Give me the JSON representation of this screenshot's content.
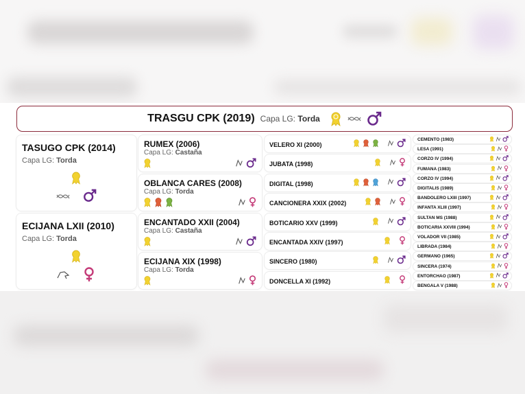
{
  "main": {
    "name": "TRASGU CPK (2019)",
    "capa_label": "Capa LG:",
    "capa_value": "Torda"
  },
  "parents": [
    {
      "name": "TASUGO CPK (2014)",
      "capa_label": "Capa LG:",
      "capa_value": "Torda",
      "sex": "♂"
    },
    {
      "name": "ECIJANA LXII (2010)",
      "capa_label": "Capa LG:",
      "capa_value": "Torda",
      "sex": "♀"
    }
  ],
  "grandparents": [
    {
      "name": "RUMEX (2006)",
      "capa_label": "Capa LG:",
      "capa_value": "Castaña",
      "sex": "♂"
    },
    {
      "name": "OBLANCA CARES (2008)",
      "capa_label": "Capa LG:",
      "capa_value": "Torda",
      "sex": "♀"
    },
    {
      "name": "ENCANTADO XXII (2004)",
      "capa_label": "Capa LG:",
      "capa_value": "Castaña",
      "sex": "♂"
    },
    {
      "name": "ECIJANA XIX (1998)",
      "capa_label": "Capa LG:",
      "capa_value": "Torda",
      "sex": "♀"
    }
  ],
  "great_grandparents": [
    {
      "name": "VELERO XI (2000)",
      "sex": "♂"
    },
    {
      "name": "JUBATA (1998)",
      "sex": "♀"
    },
    {
      "name": "DIGITAL (1998)",
      "sex": "♂"
    },
    {
      "name": "CANCIONERA XXIX (2002)",
      "sex": "♀"
    },
    {
      "name": "BOTICARIO XXV (1999)",
      "sex": "♂"
    },
    {
      "name": "ENCANTADA XXIV (1997)",
      "sex": "♀"
    },
    {
      "name": "SINCERO (1980)",
      "sex": "♂"
    },
    {
      "name": "DONCELLA XI (1992)",
      "sex": "♀"
    }
  ],
  "great_great_grandparents": [
    {
      "name": "CEMENTO (1983)",
      "sex": "♂"
    },
    {
      "name": "LESA (1991)",
      "sex": "♀"
    },
    {
      "name": "CORZO IV (1994)",
      "sex": "♂"
    },
    {
      "name": "FUMANA (1983)",
      "sex": "♀"
    },
    {
      "name": "CORZO IV (1994)",
      "sex": "♂"
    },
    {
      "name": "DIGITALIS (1989)",
      "sex": "♀"
    },
    {
      "name": "BANDOLERO LXIII (1997)",
      "sex": "♂"
    },
    {
      "name": "INFANTA XLIII (1997)",
      "sex": "♀"
    },
    {
      "name": "SULTAN MS (1988)",
      "sex": "♂"
    },
    {
      "name": "BOTICARIA XXVIII (1994)",
      "sex": "♀"
    },
    {
      "name": "VOLADOR VII (1985)",
      "sex": "♂"
    },
    {
      "name": "LIBRADA (1984)",
      "sex": "♀"
    },
    {
      "name": "GERMANO (1965)",
      "sex": "♂"
    },
    {
      "name": "SINCERA (1974)",
      "sex": "♀"
    },
    {
      "name": "ENTORCHAO (1987)",
      "sex": "♂"
    },
    {
      "name": "BENGALA V (1988)",
      "sex": "♀"
    }
  ],
  "colors": {
    "border": "#8b2a3a",
    "male": "#6a2a8c",
    "female": "#c43b78",
    "medal_gold": "#f2d230",
    "medal_red": "#e0603a",
    "medal_green": "#7cb342",
    "medal_blue": "#4fa3d9"
  },
  "icons": {
    "medal": "rosette-medal-icon",
    "brand": "brand-mark-icon",
    "male": "male-symbol-icon",
    "female": "female-symbol-icon"
  }
}
